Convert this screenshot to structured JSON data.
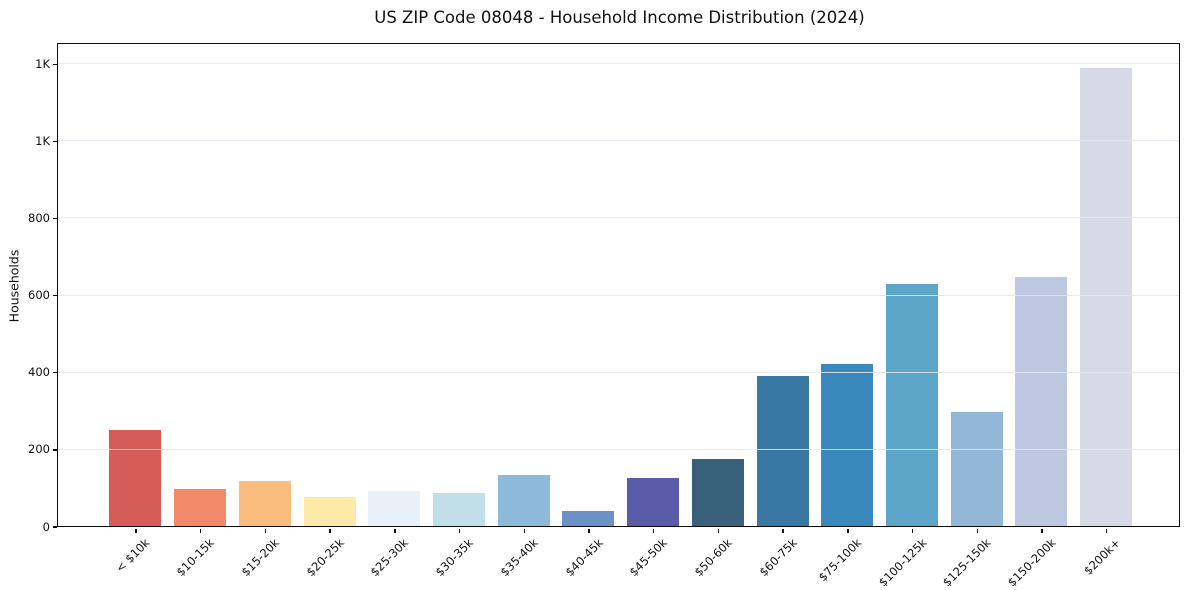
{
  "chart_data": {
    "type": "bar",
    "title": "US ZIP Code 08048 - Household Income Distribution (2024)",
    "xlabel": "",
    "ylabel": "Households",
    "categories": [
      "< $10k",
      "$10-15k",
      "$15-20k",
      "$20-25k",
      "$25-30k",
      "$30-35k",
      "$35-40k",
      "$40-45k",
      "$45-50k",
      "$50-60k",
      "$60-75k",
      "$75-100k",
      "$100-125k",
      "$125-150k",
      "$150-200k",
      "$200k+"
    ],
    "values": [
      250,
      96,
      117,
      77,
      93,
      86,
      133,
      40,
      126,
      174,
      390,
      420,
      628,
      298,
      648,
      1190
    ],
    "bar_colors": [
      "#d65d57",
      "#f28a6a",
      "#fabd7c",
      "#fde9a8",
      "#e7f1f7",
      "#c0dfe9",
      "#8db9db",
      "#6b92c5",
      "#5a5caa",
      "#38607a",
      "#3878a3",
      "#3989bd",
      "#5da4c9",
      "#93b7d6",
      "#bcc9e0",
      "#d7d9e6"
    ],
    "ylim": [
      0,
      1250
    ],
    "yticks": [
      {
        "value": 0,
        "label": "0"
      },
      {
        "value": 200,
        "label": "200"
      },
      {
        "value": 400,
        "label": "400"
      },
      {
        "value": 600,
        "label": "600"
      },
      {
        "value": 800,
        "label": "800"
      },
      {
        "value": 1000,
        "label": "1K"
      },
      {
        "value": 1200,
        "label": "1K"
      }
    ],
    "grid": "horizontal",
    "grid_color": "#e6e8f0",
    "spine_color": "#0c0c0c",
    "background": "#ffffff",
    "legend": "none"
  }
}
